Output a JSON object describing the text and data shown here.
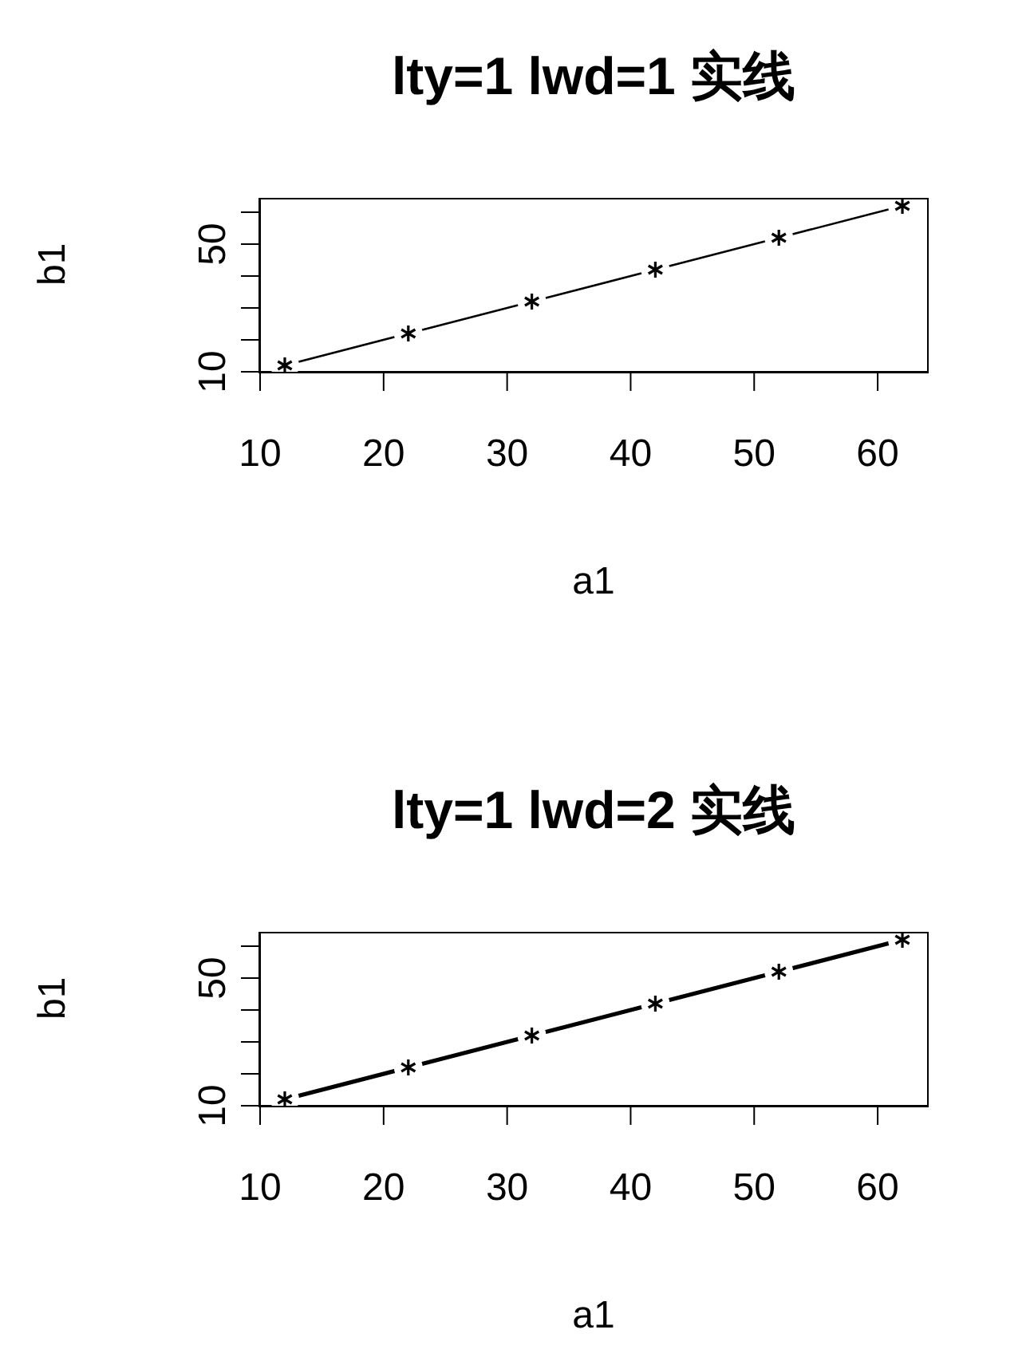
{
  "chart_data": [
    {
      "type": "line",
      "title": "lty=1 lwd=1 实线",
      "xlabel": "a1",
      "ylabel": "b1",
      "x": [
        12,
        22,
        32,
        42,
        52,
        62
      ],
      "series": [
        {
          "color": "#000000",
          "values": [
            12,
            22,
            32,
            42,
            52,
            62
          ]
        }
      ],
      "xlim": [
        10,
        64
      ],
      "ylim": [
        10,
        64
      ],
      "xticks": [
        10,
        20,
        30,
        40,
        50,
        60
      ],
      "yticks": [
        {
          "value": 10,
          "label": "10"
        },
        {
          "value": 20,
          "label": null
        },
        {
          "value": 30,
          "label": null
        },
        {
          "value": 40,
          "label": null
        },
        {
          "value": 50,
          "label": "50"
        },
        {
          "value": 60,
          "label": null
        }
      ],
      "grid": false,
      "legend": false,
      "marker": "cross",
      "line_style": "solid"
    },
    {
      "type": "line",
      "title": "lty=1 lwd=2 实线",
      "xlabel": "a1",
      "ylabel": "b1",
      "x": [
        12,
        22,
        32,
        42,
        52,
        62
      ],
      "series": [
        {
          "color": "#000000",
          "values": [
            12,
            22,
            32,
            42,
            52,
            62
          ]
        }
      ],
      "xlim": [
        10,
        64
      ],
      "ylim": [
        10,
        64
      ],
      "xticks": [
        10,
        20,
        30,
        40,
        50,
        60
      ],
      "yticks": [
        {
          "value": 10,
          "label": "10"
        },
        {
          "value": 20,
          "label": null
        },
        {
          "value": 30,
          "label": null
        },
        {
          "value": 40,
          "label": null
        },
        {
          "value": 50,
          "label": "50"
        },
        {
          "value": 60,
          "label": null
        }
      ],
      "grid": false,
      "legend": false,
      "marker": "cross",
      "line_style": "solid"
    }
  ]
}
